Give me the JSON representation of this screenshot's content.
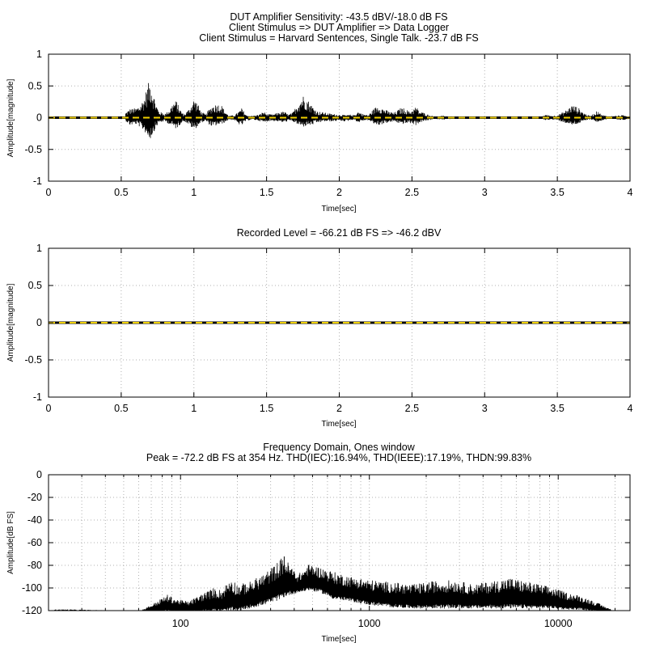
{
  "chart_data": [
    {
      "type": "line",
      "title_lines": [
        "DUT Amplifier Sensitivity: -43.5 dBV/-18.0 dB FS",
        "Client Stimulus => DUT Amplifier => Data Logger",
        "Client Stimulus = Harvard Sentences, Single Talk. -23.7 dB FS"
      ],
      "xlabel": "Time[sec]",
      "ylabel": "Amplitude[magnitude]",
      "xlim": [
        0,
        4
      ],
      "ylim": [
        -1,
        1
      ],
      "xticks": [
        "0",
        "0.5",
        "1",
        "1.5",
        "2",
        "2.5",
        "3",
        "3.5",
        "4"
      ],
      "yticks": [
        "1",
        "0.5",
        "0",
        "-0.5",
        "-1"
      ],
      "grid": true,
      "series": [
        {
          "kind": "waveform",
          "color": "#000000",
          "envelope": [
            {
              "t": 0.53,
              "max": 0.08,
              "min": -0.05
            },
            {
              "t": 0.56,
              "max": 0.14,
              "min": -0.12
            },
            {
              "t": 0.6,
              "max": 0.15,
              "min": -0.1
            },
            {
              "t": 0.63,
              "max": 0.2,
              "min": -0.15
            },
            {
              "t": 0.66,
              "max": 0.33,
              "min": -0.22
            },
            {
              "t": 0.68,
              "max": 0.5,
              "min": -0.3
            },
            {
              "t": 0.7,
              "max": 0.62,
              "min": -0.34
            },
            {
              "t": 0.72,
              "max": 0.4,
              "min": -0.25
            },
            {
              "t": 0.74,
              "max": 0.22,
              "min": -0.15
            },
            {
              "t": 0.76,
              "max": 0.1,
              "min": -0.08
            },
            {
              "t": 0.8,
              "max": 0.06,
              "min": -0.06
            },
            {
              "t": 0.83,
              "max": 0.12,
              "min": -0.1
            },
            {
              "t": 0.86,
              "max": 0.25,
              "min": -0.15
            },
            {
              "t": 0.88,
              "max": 0.27,
              "min": -0.18
            },
            {
              "t": 0.9,
              "max": 0.15,
              "min": -0.12
            },
            {
              "t": 0.93,
              "max": 0.05,
              "min": -0.05
            },
            {
              "t": 0.96,
              "max": 0.12,
              "min": -0.1
            },
            {
              "t": 0.98,
              "max": 0.2,
              "min": -0.15
            },
            {
              "t": 1.0,
              "max": 0.3,
              "min": -0.2
            },
            {
              "t": 1.02,
              "max": 0.25,
              "min": -0.15
            },
            {
              "t": 1.05,
              "max": 0.1,
              "min": -0.08
            },
            {
              "t": 1.08,
              "max": 0.05,
              "min": -0.05
            },
            {
              "t": 1.1,
              "max": 0.12,
              "min": -0.1
            },
            {
              "t": 1.13,
              "max": 0.2,
              "min": -0.15
            },
            {
              "t": 1.16,
              "max": 0.22,
              "min": -0.12
            },
            {
              "t": 1.19,
              "max": 0.2,
              "min": -0.1
            },
            {
              "t": 1.21,
              "max": 0.12,
              "min": -0.08
            },
            {
              "t": 1.24,
              "max": 0.03,
              "min": -0.03
            },
            {
              "t": 1.28,
              "max": 0.04,
              "min": -0.04
            },
            {
              "t": 1.3,
              "max": 0.08,
              "min": -0.1
            },
            {
              "t": 1.33,
              "max": 0.15,
              "min": -0.12
            },
            {
              "t": 1.36,
              "max": 0.04,
              "min": -0.05
            },
            {
              "t": 1.4,
              "max": 0.03,
              "min": -0.03
            },
            {
              "t": 1.45,
              "max": 0.05,
              "min": -0.05
            },
            {
              "t": 1.48,
              "max": 0.1,
              "min": -0.08
            },
            {
              "t": 1.5,
              "max": 0.06,
              "min": -0.06
            },
            {
              "t": 1.54,
              "max": 0.05,
              "min": -0.05
            },
            {
              "t": 1.58,
              "max": 0.08,
              "min": -0.06
            },
            {
              "t": 1.62,
              "max": 0.1,
              "min": -0.08
            },
            {
              "t": 1.65,
              "max": 0.05,
              "min": -0.05
            },
            {
              "t": 1.68,
              "max": 0.08,
              "min": -0.06
            },
            {
              "t": 1.72,
              "max": 0.25,
              "min": -0.12
            },
            {
              "t": 1.75,
              "max": 0.36,
              "min": -0.15
            },
            {
              "t": 1.78,
              "max": 0.3,
              "min": -0.12
            },
            {
              "t": 1.81,
              "max": 0.2,
              "min": -0.12
            },
            {
              "t": 1.85,
              "max": 0.1,
              "min": -0.08
            },
            {
              "t": 1.9,
              "max": 0.08,
              "min": -0.06
            },
            {
              "t": 1.95,
              "max": 0.06,
              "min": -0.06
            },
            {
              "t": 2.0,
              "max": 0.05,
              "min": -0.05
            },
            {
              "t": 2.05,
              "max": 0.04,
              "min": -0.06
            },
            {
              "t": 2.08,
              "max": 0.05,
              "min": -0.04
            },
            {
              "t": 2.1,
              "max": 0.04,
              "min": -0.03
            },
            {
              "t": 2.13,
              "max": 0.1,
              "min": -0.08
            },
            {
              "t": 2.16,
              "max": 0.06,
              "min": -0.05
            },
            {
              "t": 2.2,
              "max": 0.04,
              "min": -0.04
            },
            {
              "t": 2.24,
              "max": 0.15,
              "min": -0.1
            },
            {
              "t": 2.27,
              "max": 0.2,
              "min": -0.12
            },
            {
              "t": 2.3,
              "max": 0.15,
              "min": -0.1
            },
            {
              "t": 2.34,
              "max": 0.1,
              "min": -0.08
            },
            {
              "t": 2.38,
              "max": 0.08,
              "min": -0.06
            },
            {
              "t": 2.42,
              "max": 0.15,
              "min": -0.1
            },
            {
              "t": 2.45,
              "max": 0.15,
              "min": -0.1
            },
            {
              "t": 2.48,
              "max": 0.1,
              "min": -0.08
            },
            {
              "t": 2.5,
              "max": 0.12,
              "min": -0.1
            },
            {
              "t": 2.53,
              "max": 0.18,
              "min": -0.12
            },
            {
              "t": 2.55,
              "max": 0.1,
              "min": -0.08
            },
            {
              "t": 2.58,
              "max": 0.08,
              "min": -0.06
            },
            {
              "t": 2.62,
              "max": 0.04,
              "min": -0.04
            },
            {
              "t": 2.66,
              "max": 0.02,
              "min": -0.02
            },
            {
              "t": 2.72,
              "max": 0.03,
              "min": -0.03
            },
            {
              "t": 2.78,
              "max": 0.02,
              "min": -0.02
            },
            {
              "t": 2.82,
              "max": 0.01,
              "min": -0.01
            },
            {
              "t": 3.38,
              "max": 0.01,
              "min": -0.01
            },
            {
              "t": 3.42,
              "max": 0.05,
              "min": -0.04
            },
            {
              "t": 3.46,
              "max": 0.03,
              "min": -0.03
            },
            {
              "t": 3.5,
              "max": 0.04,
              "min": -0.04
            },
            {
              "t": 3.55,
              "max": 0.1,
              "min": -0.08
            },
            {
              "t": 3.6,
              "max": 0.2,
              "min": -0.12
            },
            {
              "t": 3.64,
              "max": 0.17,
              "min": -0.1
            },
            {
              "t": 3.68,
              "max": 0.08,
              "min": -0.06
            },
            {
              "t": 3.72,
              "max": 0.03,
              "min": -0.03
            },
            {
              "t": 3.75,
              "max": 0.06,
              "min": -0.04
            },
            {
              "t": 3.78,
              "max": 0.12,
              "min": -0.08
            },
            {
              "t": 3.8,
              "max": 0.05,
              "min": -0.05
            },
            {
              "t": 3.85,
              "max": 0.02,
              "min": -0.02
            },
            {
              "t": 3.9,
              "max": 0.03,
              "min": -0.03
            },
            {
              "t": 3.95,
              "max": 0.04,
              "min": -0.04
            },
            {
              "t": 3.99,
              "max": 0.02,
              "min": -0.02
            }
          ]
        },
        {
          "kind": "level-line",
          "color": "#f0d000",
          "y": 0
        }
      ]
    },
    {
      "type": "line",
      "title_lines": [
        "Recorded Level = -66.21 dB FS  => -46.2 dBV"
      ],
      "xlabel": "Time[sec]",
      "ylabel": "Amplitude[magnitude]",
      "xlim": [
        0,
        4
      ],
      "ylim": [
        -1,
        1
      ],
      "xticks": [
        "0",
        "0.5",
        "1",
        "1.5",
        "2",
        "2.5",
        "3",
        "3.5",
        "4"
      ],
      "yticks": [
        "1",
        "0.5",
        "0",
        "-0.5",
        "-1"
      ],
      "grid": true,
      "series": [
        {
          "kind": "waveform",
          "color": "#000000",
          "envelope": [
            {
              "t": 0.6,
              "max": 0.005,
              "min": -0.005
            },
            {
              "t": 0.95,
              "max": 0.006,
              "min": -0.006
            },
            {
              "t": 1.3,
              "max": 0.005,
              "min": -0.005
            },
            {
              "t": 1.75,
              "max": 0.006,
              "min": -0.006
            },
            {
              "t": 2.25,
              "max": 0.005,
              "min": -0.005
            },
            {
              "t": 2.55,
              "max": 0.004,
              "min": -0.004
            },
            {
              "t": 3.6,
              "max": 0.005,
              "min": -0.005
            },
            {
              "t": 3.95,
              "max": 0.006,
              "min": -0.006
            }
          ]
        },
        {
          "kind": "level-line",
          "color": "#f0d000",
          "y": 0
        }
      ]
    },
    {
      "type": "line",
      "title_lines": [
        "Frequency Domain, Ones window",
        "Peak = -72.2 dB FS at 354 Hz. THD(IEC):16.94%, THD(IEEE):17.19%, THDN:99.83%"
      ],
      "xlabel": "Time[sec]",
      "ylabel": "Amplitude[dB FS]",
      "xscale": "log",
      "xlim": [
        20,
        24000
      ],
      "ylim": [
        -120,
        0
      ],
      "xticks": [
        {
          "value": 100,
          "label": "100"
        },
        {
          "value": 1000,
          "label": "1000"
        },
        {
          "value": 10000,
          "label": "10000"
        }
      ],
      "yticks": [
        "0",
        "-20",
        "-40",
        "-60",
        "-80",
        "-100",
        "-120"
      ],
      "grid": true,
      "series": [
        {
          "kind": "spectrum",
          "color": "#000000",
          "peak": {
            "frequency_hz": 354,
            "level_db": -72.2
          },
          "envelope": [
            {
              "f": 20,
              "top": -121,
              "bottom": -121
            },
            {
              "f": 22,
              "top": -119,
              "bottom": -121
            },
            {
              "f": 60,
              "top": -121,
              "bottom": -121
            },
            {
              "f": 65,
              "top": -118,
              "bottom": -121
            },
            {
              "f": 75,
              "top": -112,
              "bottom": -121
            },
            {
              "f": 85,
              "top": -106,
              "bottom": -121
            },
            {
              "f": 95,
              "top": -110,
              "bottom": -121
            },
            {
              "f": 110,
              "top": -112,
              "bottom": -121
            },
            {
              "f": 130,
              "top": -105,
              "bottom": -121
            },
            {
              "f": 150,
              "top": -100,
              "bottom": -121
            },
            {
              "f": 165,
              "top": -102,
              "bottom": -121
            },
            {
              "f": 185,
              "top": -90,
              "bottom": -121
            },
            {
              "f": 200,
              "top": -97,
              "bottom": -121
            },
            {
              "f": 230,
              "top": -95,
              "bottom": -118
            },
            {
              "f": 260,
              "top": -90,
              "bottom": -116
            },
            {
              "f": 300,
              "top": -83,
              "bottom": -113
            },
            {
              "f": 340,
              "top": -74,
              "bottom": -110
            },
            {
              "f": 354,
              "top": -72.2,
              "bottom": -108
            },
            {
              "f": 380,
              "top": -80,
              "bottom": -106
            },
            {
              "f": 420,
              "top": -88,
              "bottom": -104
            },
            {
              "f": 480,
              "top": -79,
              "bottom": -102
            },
            {
              "f": 550,
              "top": -82,
              "bottom": -104
            },
            {
              "f": 650,
              "top": -86,
              "bottom": -110
            },
            {
              "f": 800,
              "top": -90,
              "bottom": -112
            },
            {
              "f": 1000,
              "top": -93,
              "bottom": -115
            },
            {
              "f": 1300,
              "top": -95,
              "bottom": -117
            },
            {
              "f": 1700,
              "top": -97,
              "bottom": -118
            },
            {
              "f": 2200,
              "top": -94,
              "bottom": -118
            },
            {
              "f": 2800,
              "top": -93,
              "bottom": -118
            },
            {
              "f": 3500,
              "top": -97,
              "bottom": -118
            },
            {
              "f": 4500,
              "top": -94,
              "bottom": -118
            },
            {
              "f": 5500,
              "top": -91,
              "bottom": -118
            },
            {
              "f": 7000,
              "top": -95,
              "bottom": -118
            },
            {
              "f": 9000,
              "top": -99,
              "bottom": -118
            },
            {
              "f": 11000,
              "top": -104,
              "bottom": -119
            },
            {
              "f": 13000,
              "top": -107,
              "bottom": -119
            },
            {
              "f": 15000,
              "top": -111,
              "bottom": -120
            },
            {
              "f": 17000,
              "top": -115,
              "bottom": -121
            },
            {
              "f": 19000,
              "top": -119,
              "bottom": -121
            }
          ]
        }
      ]
    }
  ]
}
